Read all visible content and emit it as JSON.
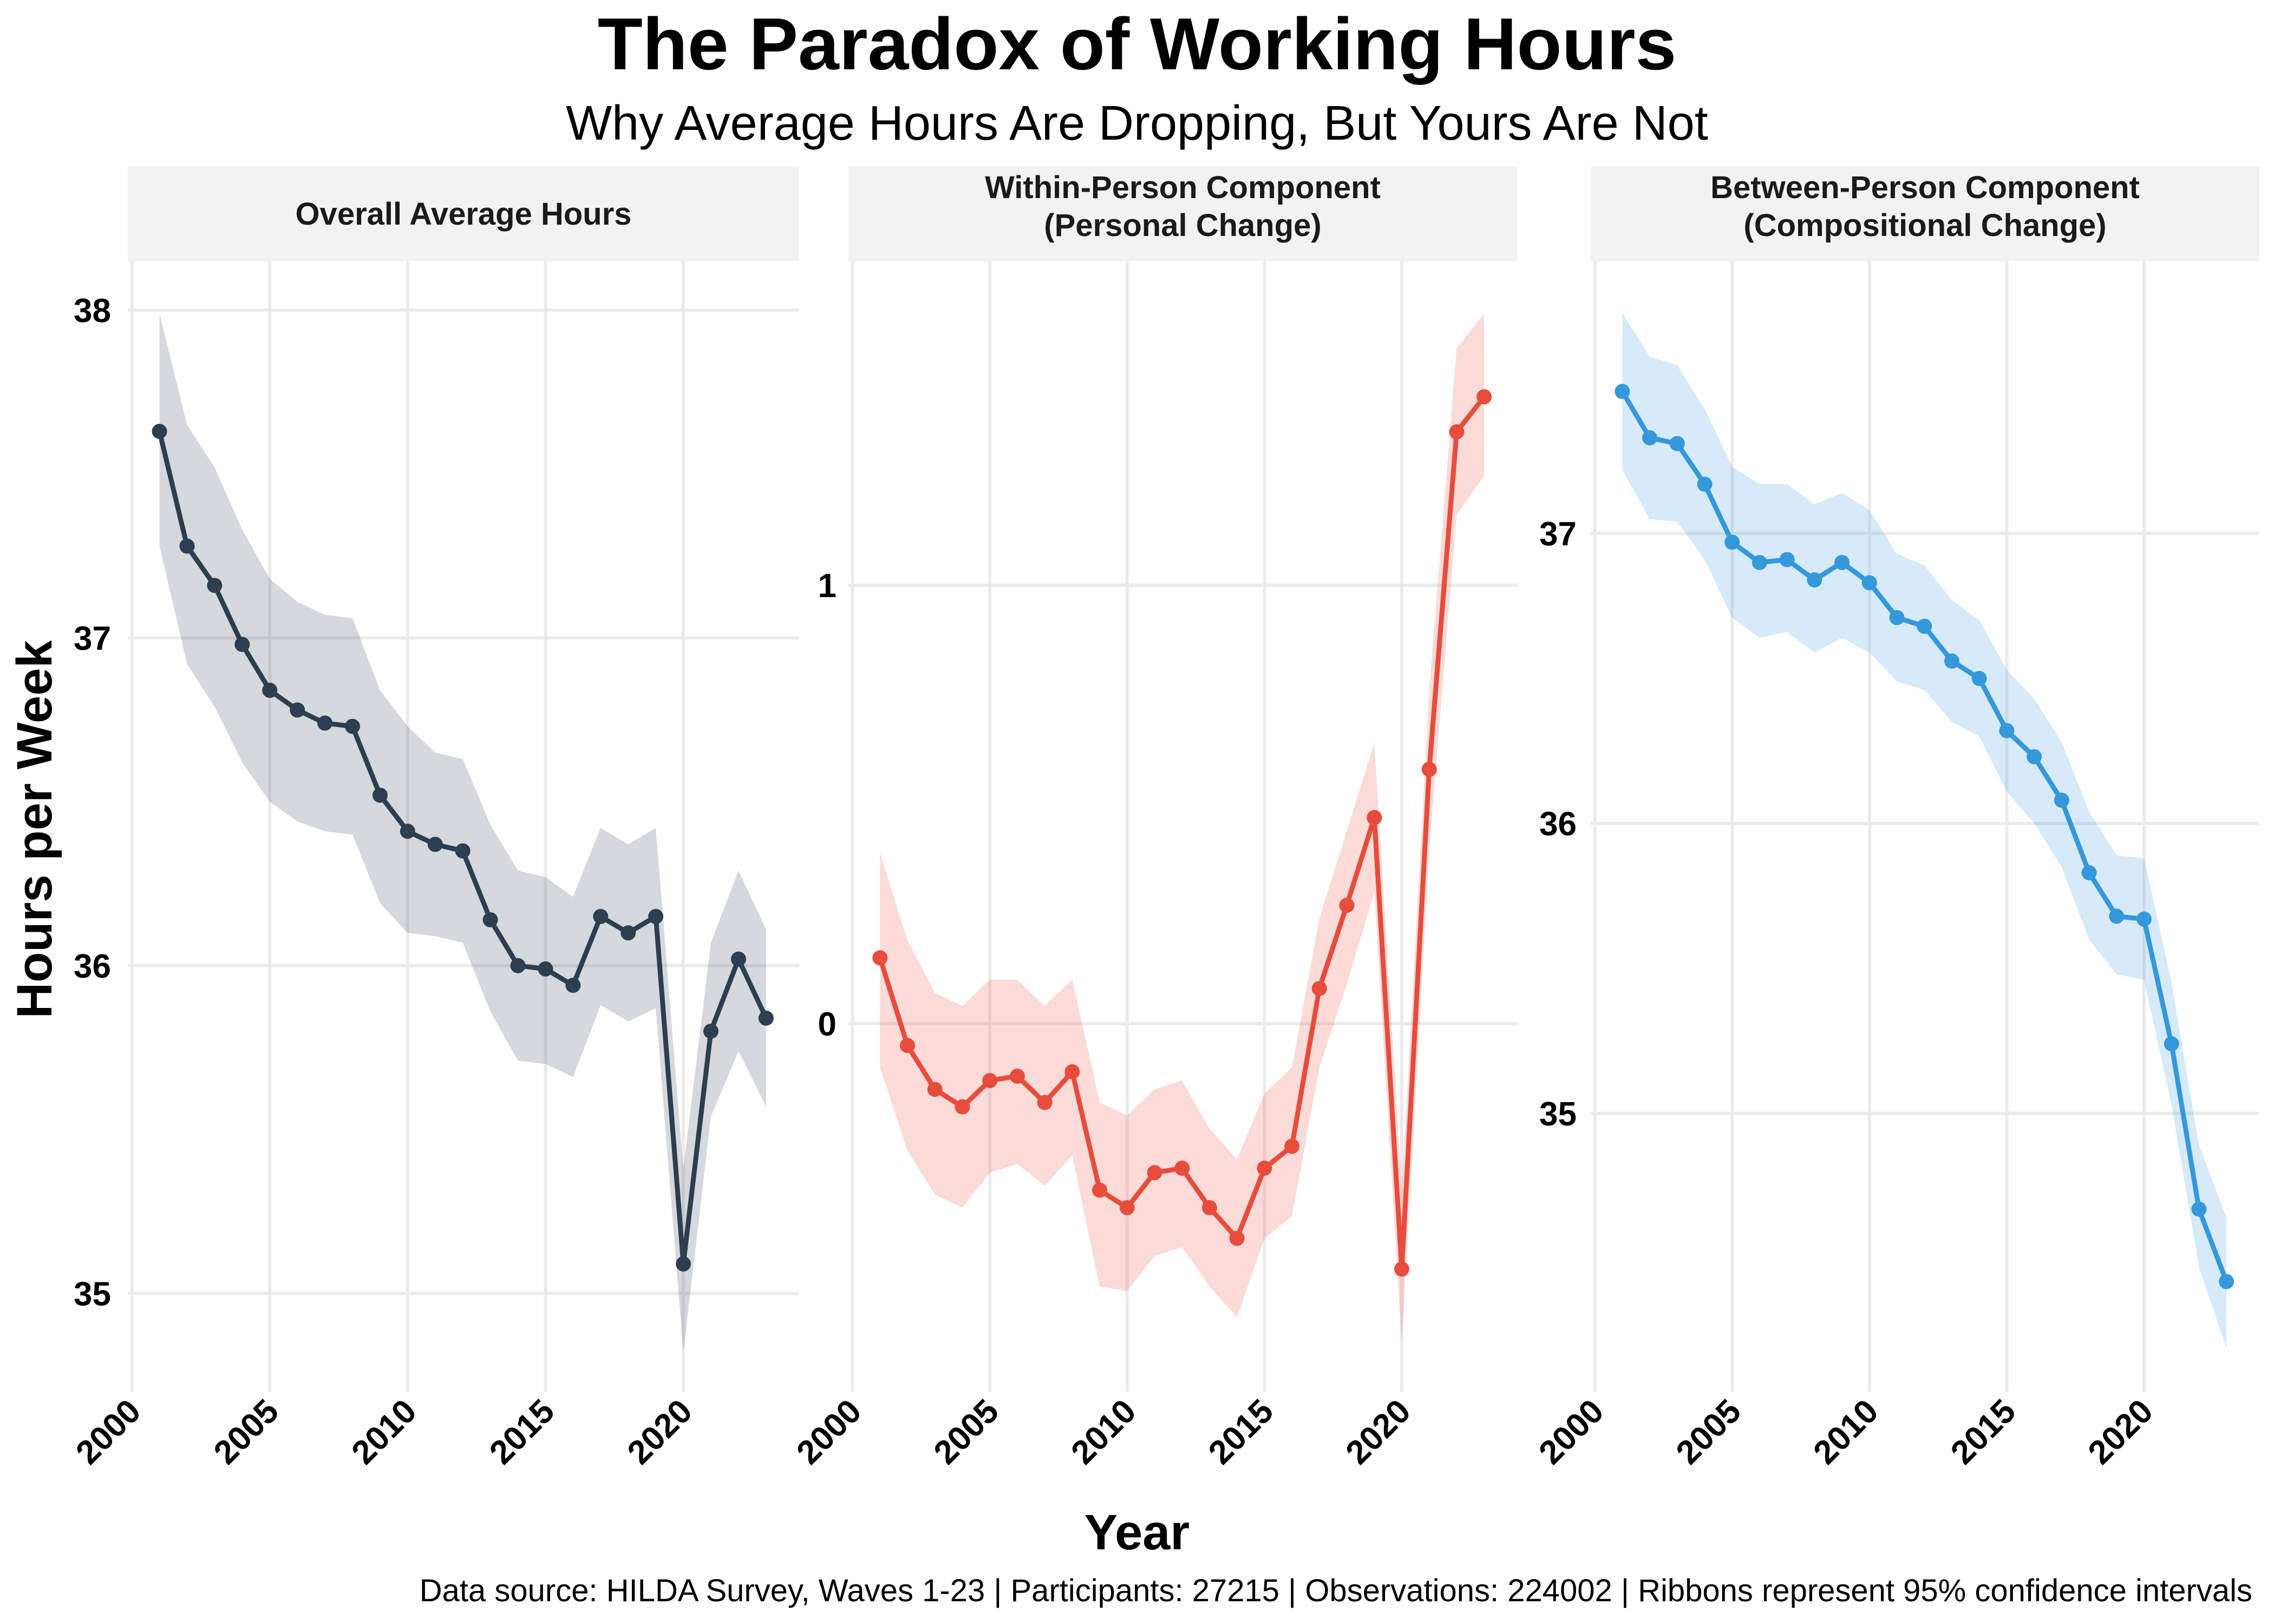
{
  "chart_data": {
    "type": "line",
    "title": "The Paradox of Working Hours",
    "subtitle": "Why Average Hours Are Dropping, But Yours Are Not",
    "xlabel": "Year",
    "ylabel": "Hours per Week",
    "caption": "Data source: HILDA Survey, Waves 1-23 | Participants: 27215 | Observations: 224002 | Ribbons represent 95% confidence intervals",
    "x": [
      2001,
      2002,
      2003,
      2004,
      2005,
      2006,
      2007,
      2008,
      2009,
      2010,
      2011,
      2012,
      2013,
      2014,
      2015,
      2016,
      2017,
      2018,
      2019,
      2020,
      2021,
      2022,
      2023
    ],
    "xticks": [
      "2000",
      "2005",
      "2010",
      "2015",
      "2020"
    ],
    "xtick_values": [
      2000,
      2005,
      2010,
      2015,
      2020
    ],
    "grid": true,
    "ribbon": "95% confidence interval",
    "panels": [
      {
        "strip_label": [
          "Overall Average Hours"
        ],
        "color": "#2c3e50",
        "ribbon_color": "#2c3e50",
        "ylim": [
          34.7,
          38.15
        ],
        "yticks": [
          "35",
          "36",
          "37",
          "38"
        ],
        "ytick_values": [
          35,
          36,
          37,
          38
        ],
        "values": [
          37.63,
          37.28,
          37.16,
          36.98,
          36.84,
          36.78,
          36.74,
          36.73,
          36.52,
          36.41,
          36.37,
          36.35,
          36.14,
          36.0,
          35.99,
          35.94,
          36.15,
          36.1,
          36.15,
          35.09,
          35.8,
          36.02,
          35.84
        ],
        "lower": [
          37.28,
          36.92,
          36.79,
          36.62,
          36.5,
          36.44,
          36.41,
          36.4,
          36.19,
          36.1,
          36.09,
          36.07,
          35.86,
          35.71,
          35.7,
          35.66,
          35.88,
          35.83,
          35.87,
          34.82,
          35.54,
          35.74,
          35.57
        ],
        "upper": [
          37.99,
          37.65,
          37.52,
          37.33,
          37.18,
          37.11,
          37.07,
          37.06,
          36.84,
          36.73,
          36.65,
          36.63,
          36.43,
          36.29,
          36.27,
          36.21,
          36.42,
          36.37,
          36.42,
          35.38,
          36.07,
          36.29,
          36.11
        ]
      },
      {
        "strip_label": [
          "Within-Person Component",
          "(Personal Change)"
        ],
        "color": "#e74c3c",
        "ribbon_color": "#e74c3c",
        "ylim": [
          -0.84,
          1.74
        ],
        "yticks": [
          "0",
          "1"
        ],
        "ytick_values": [
          0,
          1
        ],
        "values": [
          0.15,
          -0.05,
          -0.15,
          -0.19,
          -0.13,
          -0.12,
          -0.18,
          -0.11,
          -0.38,
          -0.42,
          -0.34,
          -0.33,
          -0.42,
          -0.49,
          -0.33,
          -0.28,
          0.08,
          0.27,
          0.47,
          -0.56,
          0.58,
          1.35,
          1.43
        ],
        "lower": [
          -0.1,
          -0.29,
          -0.39,
          -0.42,
          -0.34,
          -0.32,
          -0.37,
          -0.3,
          -0.6,
          -0.61,
          -0.53,
          -0.51,
          -0.6,
          -0.67,
          -0.49,
          -0.44,
          -0.1,
          0.09,
          0.3,
          -0.73,
          0.4,
          1.16,
          1.25
        ],
        "upper": [
          0.39,
          0.19,
          0.07,
          0.04,
          0.1,
          0.1,
          0.04,
          0.1,
          -0.18,
          -0.21,
          -0.15,
          -0.13,
          -0.24,
          -0.31,
          -0.16,
          -0.1,
          0.24,
          0.44,
          0.64,
          -0.38,
          0.76,
          1.54,
          1.62
        ]
      },
      {
        "strip_label": [
          "Between-Person Component",
          "(Compositional Change)"
        ],
        "color": "#3498db",
        "ribbon_color": "#3498db",
        "ylim": [
          34.04,
          37.94
        ],
        "yticks": [
          "35",
          "36",
          "37"
        ],
        "ytick_values": [
          35,
          36,
          37
        ],
        "values": [
          37.49,
          37.33,
          37.31,
          37.17,
          36.97,
          36.9,
          36.91,
          36.84,
          36.9,
          36.83,
          36.71,
          36.68,
          36.56,
          36.5,
          36.32,
          36.23,
          36.08,
          35.83,
          35.68,
          35.67,
          35.24,
          34.67,
          34.42
        ],
        "lower": [
          37.22,
          37.05,
          37.04,
          36.91,
          36.71,
          36.64,
          36.66,
          36.59,
          36.64,
          36.59,
          36.49,
          36.46,
          36.35,
          36.3,
          36.11,
          36.0,
          35.85,
          35.6,
          35.48,
          35.46,
          35.03,
          34.47,
          34.19
        ],
        "upper": [
          37.76,
          37.61,
          37.58,
          37.43,
          37.23,
          37.17,
          37.17,
          37.1,
          37.14,
          37.08,
          36.93,
          36.89,
          36.77,
          36.7,
          36.53,
          36.43,
          36.28,
          36.04,
          35.89,
          35.88,
          35.45,
          34.89,
          34.64
        ]
      }
    ]
  }
}
